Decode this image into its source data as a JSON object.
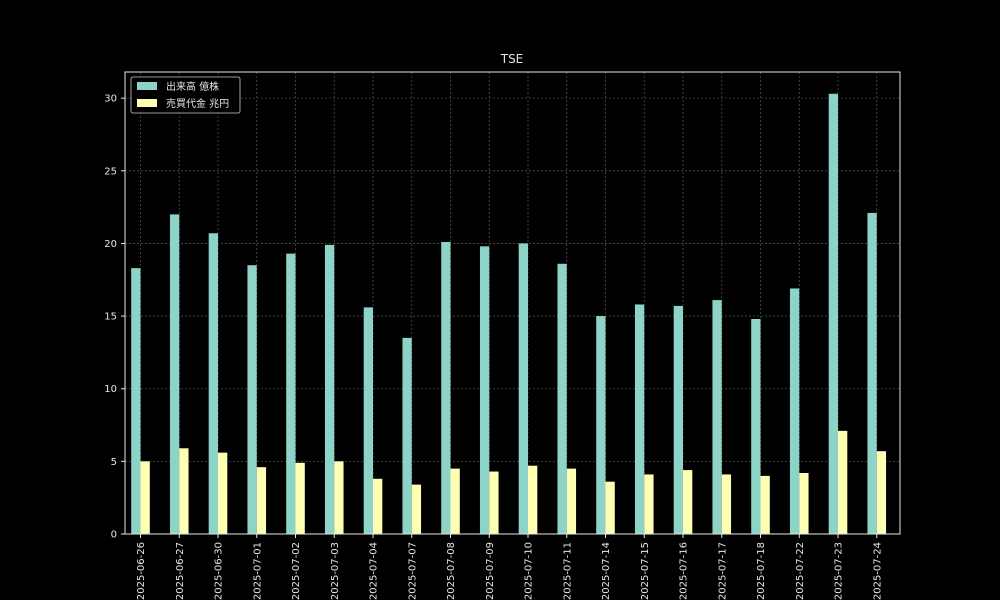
{
  "chart_data": {
    "type": "bar",
    "title": "TSE",
    "xlabel": "",
    "ylabel": "",
    "ylim": [
      0,
      31.8
    ],
    "yticks": [
      0,
      5,
      10,
      15,
      20,
      25,
      30
    ],
    "grid": true,
    "legend_position": "top-left",
    "categories": [
      "2025-06-26",
      "2025-06-27",
      "2025-06-30",
      "2025-07-01",
      "2025-07-02",
      "2025-07-03",
      "2025-07-04",
      "2025-07-07",
      "2025-07-08",
      "2025-07-09",
      "2025-07-10",
      "2025-07-11",
      "2025-07-14",
      "2025-07-15",
      "2025-07-16",
      "2025-07-17",
      "2025-07-18",
      "2025-07-22",
      "2025-07-23",
      "2025-07-24"
    ],
    "series": [
      {
        "name": "出来高 億株",
        "color": "#8dd3c7",
        "values": [
          18.3,
          22.0,
          20.7,
          18.5,
          19.3,
          19.9,
          15.6,
          13.5,
          20.1,
          19.8,
          20.0,
          18.6,
          15.0,
          15.8,
          15.7,
          16.1,
          14.8,
          16.9,
          30.3,
          22.1
        ]
      },
      {
        "name": "売買代金 兆円",
        "color": "#ffffb3",
        "values": [
          5.0,
          5.9,
          5.6,
          4.6,
          4.9,
          5.0,
          3.8,
          3.4,
          4.5,
          4.3,
          4.7,
          4.5,
          3.6,
          4.1,
          4.4,
          4.1,
          4.0,
          4.2,
          7.1,
          5.7
        ]
      }
    ]
  }
}
